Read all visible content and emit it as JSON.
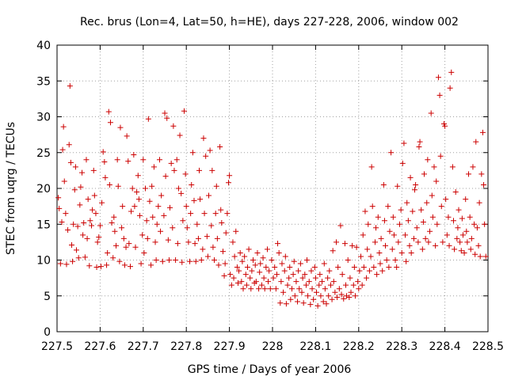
{
  "chart_data": {
    "type": "scatter",
    "title": "Rec. brus (Lon=4, Lat=50, h=HE), days 227-228, 2006, window 002",
    "xlabel": "GPS time / Days of year 2006",
    "ylabel": "STEC from uqrg / TECUs",
    "xlim": [
      227.5,
      228.5
    ],
    "ylim": [
      0,
      40
    ],
    "x_ticks": [
      "227.5",
      "227.6",
      "227.7",
      "227.8",
      "227.9",
      "228",
      "228.1",
      "228.2",
      "228.3",
      "228.4",
      "228.5"
    ],
    "y_ticks": [
      "0",
      "5",
      "10",
      "15",
      "20",
      "25",
      "30",
      "35",
      "40"
    ],
    "grid": true,
    "marker_color": "#cc0000",
    "points": [
      [
        227.503,
        18.7
      ],
      [
        227.505,
        17.2
      ],
      [
        227.508,
        9.5
      ],
      [
        227.511,
        15.3
      ],
      [
        227.513,
        25.4
      ],
      [
        227.515,
        28.6
      ],
      [
        227.517,
        21.0
      ],
      [
        227.52,
        16.5
      ],
      [
        227.522,
        9.4
      ],
      [
        227.525,
        14.2
      ],
      [
        227.528,
        26.1
      ],
      [
        227.53,
        34.3
      ],
      [
        227.532,
        23.6
      ],
      [
        227.534,
        12.1
      ],
      [
        227.536,
        9.8
      ],
      [
        227.538,
        15.0
      ],
      [
        227.541,
        19.8
      ],
      [
        227.543,
        23.0
      ],
      [
        227.545,
        11.4
      ],
      [
        227.548,
        14.7
      ],
      [
        227.55,
        10.3
      ],
      [
        227.553,
        17.7
      ],
      [
        227.555,
        20.2
      ],
      [
        227.558,
        22.2
      ],
      [
        227.56,
        13.5
      ],
      [
        227.562,
        15.2
      ],
      [
        227.565,
        10.4
      ],
      [
        227.568,
        24.0
      ],
      [
        227.57,
        13.0
      ],
      [
        227.572,
        18.5
      ],
      [
        227.575,
        9.2
      ],
      [
        227.577,
        15.5
      ],
      [
        227.58,
        14.8
      ],
      [
        227.582,
        17.0
      ],
      [
        227.585,
        22.5
      ],
      [
        227.587,
        19.0
      ],
      [
        227.59,
        16.5
      ],
      [
        227.592,
        9.0
      ],
      [
        227.594,
        12.5
      ],
      [
        227.597,
        13.2
      ],
      [
        227.6,
        14.8
      ],
      [
        227.602,
        9.1
      ],
      [
        227.604,
        18.0
      ],
      [
        227.607,
        25.1
      ],
      [
        227.61,
        23.7
      ],
      [
        227.612,
        21.5
      ],
      [
        227.615,
        9.3
      ],
      [
        227.617,
        11.0
      ],
      [
        227.62,
        30.7
      ],
      [
        227.622,
        20.5
      ],
      [
        227.624,
        29.2
      ],
      [
        227.627,
        15.2
      ],
      [
        227.63,
        10.3
      ],
      [
        227.632,
        16.0
      ],
      [
        227.634,
        14.0
      ],
      [
        227.637,
        12.0
      ],
      [
        227.64,
        24.0
      ],
      [
        227.642,
        20.3
      ],
      [
        227.645,
        9.8
      ],
      [
        227.647,
        28.5
      ],
      [
        227.65,
        14.5
      ],
      [
        227.652,
        17.5
      ],
      [
        227.655,
        13.0
      ],
      [
        227.657,
        9.3
      ],
      [
        227.66,
        11.8
      ],
      [
        227.662,
        27.3
      ],
      [
        227.665,
        23.8
      ],
      [
        227.667,
        12.3
      ],
      [
        227.67,
        9.1
      ],
      [
        227.672,
        16.8
      ],
      [
        227.675,
        20.0
      ],
      [
        227.678,
        24.7
      ],
      [
        227.68,
        17.5
      ],
      [
        227.682,
        11.8
      ],
      [
        227.685,
        19.5
      ],
      [
        227.688,
        21.8
      ],
      [
        227.69,
        18.5
      ],
      [
        227.692,
        16.2
      ],
      [
        227.695,
        9.5
      ],
      [
        227.698,
        13.5
      ],
      [
        227.7,
        24.0
      ],
      [
        227.702,
        11.0
      ],
      [
        227.705,
        20.0
      ],
      [
        227.708,
        15.5
      ],
      [
        227.71,
        13.0
      ],
      [
        227.712,
        29.7
      ],
      [
        227.715,
        18.2
      ],
      [
        227.718,
        9.3
      ],
      [
        227.72,
        20.3
      ],
      [
        227.722,
        16.0
      ],
      [
        227.725,
        23.0
      ],
      [
        227.728,
        12.5
      ],
      [
        227.73,
        10.0
      ],
      [
        227.732,
        15.0
      ],
      [
        227.735,
        17.5
      ],
      [
        227.738,
        24.0
      ],
      [
        227.74,
        14.0
      ],
      [
        227.742,
        19.0
      ],
      [
        227.745,
        9.8
      ],
      [
        227.748,
        16.2
      ],
      [
        227.75,
        30.5
      ],
      [
        227.752,
        21.7
      ],
      [
        227.755,
        29.8
      ],
      [
        227.758,
        12.8
      ],
      [
        227.76,
        10.0
      ],
      [
        227.762,
        17.3
      ],
      [
        227.765,
        23.5
      ],
      [
        227.768,
        14.5
      ],
      [
        227.77,
        28.7
      ],
      [
        227.772,
        22.5
      ],
      [
        227.775,
        10.0
      ],
      [
        227.778,
        24.0
      ],
      [
        227.78,
        12.3
      ],
      [
        227.782,
        20.0
      ],
      [
        227.785,
        27.4
      ],
      [
        227.788,
        19.3
      ],
      [
        227.79,
        9.7
      ],
      [
        227.792,
        15.5
      ],
      [
        227.795,
        30.8
      ],
      [
        227.798,
        22.0
      ],
      [
        227.8,
        17.5
      ],
      [
        227.802,
        14.5
      ],
      [
        227.805,
        12.5
      ],
      [
        227.808,
        9.8
      ],
      [
        227.81,
        16.5
      ],
      [
        227.812,
        20.5
      ],
      [
        227.815,
        25.0
      ],
      [
        227.818,
        18.3
      ],
      [
        227.82,
        12.3
      ],
      [
        227.822,
        9.8
      ],
      [
        227.825,
        15.0
      ],
      [
        227.828,
        13.0
      ],
      [
        227.83,
        22.5
      ],
      [
        227.832,
        18.5
      ],
      [
        227.835,
        10.0
      ],
      [
        227.838,
        11.5
      ],
      [
        227.84,
        27.0
      ],
      [
        227.842,
        16.5
      ],
      [
        227.845,
        24.5
      ],
      [
        227.848,
        13.3
      ],
      [
        227.85,
        10.5
      ],
      [
        227.852,
        19.0
      ],
      [
        227.855,
        25.3
      ],
      [
        227.858,
        14.8
      ],
      [
        227.86,
        22.5
      ],
      [
        227.862,
        11.8
      ],
      [
        227.865,
        10.0
      ],
      [
        227.868,
        16.5
      ],
      [
        227.87,
        20.3
      ],
      [
        227.872,
        13.0
      ],
      [
        227.875,
        9.3
      ],
      [
        227.878,
        25.8
      ],
      [
        227.88,
        17.0
      ],
      [
        227.882,
        15.2
      ],
      [
        227.885,
        11.2
      ],
      [
        227.888,
        7.8
      ],
      [
        227.89,
        9.5
      ],
      [
        227.892,
        13.8
      ],
      [
        227.895,
        16.5
      ],
      [
        227.898,
        20.8
      ],
      [
        227.9,
        21.8
      ],
      [
        227.902,
        8.0
      ],
      [
        227.905,
        6.5
      ],
      [
        227.908,
        12.5
      ],
      [
        227.91,
        7.5
      ],
      [
        227.912,
        10.5
      ],
      [
        227.915,
        14.0
      ],
      [
        227.918,
        9.0
      ],
      [
        227.92,
        6.8
      ],
      [
        227.922,
        8.5
      ],
      [
        227.925,
        11.0
      ],
      [
        227.928,
        7.0
      ],
      [
        227.93,
        9.8
      ],
      [
        227.932,
        6.0
      ],
      [
        227.935,
        10.5
      ],
      [
        227.938,
        8.0
      ],
      [
        227.94,
        6.5
      ],
      [
        227.942,
        9.0
      ],
      [
        227.945,
        11.5
      ],
      [
        227.948,
        7.5
      ],
      [
        227.95,
        6.0
      ],
      [
        227.952,
        8.5
      ],
      [
        227.955,
        10.0
      ],
      [
        227.958,
        6.8
      ],
      [
        227.96,
        9.3
      ],
      [
        227.962,
        7.0
      ],
      [
        227.965,
        11.0
      ],
      [
        227.968,
        6.0
      ],
      [
        227.97,
        8.3
      ],
      [
        227.972,
        9.5
      ],
      [
        227.975,
        6.5
      ],
      [
        227.978,
        10.3
      ],
      [
        227.98,
        7.5
      ],
      [
        227.982,
        6.0
      ],
      [
        227.985,
        9.0
      ],
      [
        227.988,
        11.5
      ],
      [
        227.99,
        7.0
      ],
      [
        227.992,
        8.5
      ],
      [
        227.995,
        6.0
      ],
      [
        227.998,
        10.0
      ],
      [
        228.002,
        7.5
      ],
      [
        228.005,
        9.0
      ],
      [
        228.008,
        6.0
      ],
      [
        228.01,
        8.0
      ],
      [
        228.012,
        12.3
      ],
      [
        228.015,
        11.0
      ],
      [
        228.018,
        4.0
      ],
      [
        228.02,
        7.0
      ],
      [
        228.022,
        9.5
      ],
      [
        228.025,
        5.5
      ],
      [
        228.028,
        8.5
      ],
      [
        228.03,
        10.5
      ],
      [
        228.032,
        3.9
      ],
      [
        228.035,
        6.5
      ],
      [
        228.038,
        7.5
      ],
      [
        228.04,
        9.0
      ],
      [
        228.042,
        4.5
      ],
      [
        228.045,
        6.0
      ],
      [
        228.048,
        8.0
      ],
      [
        228.05,
        9.8
      ],
      [
        228.052,
        5.0
      ],
      [
        228.055,
        7.0
      ],
      [
        228.058,
        4.2
      ],
      [
        228.06,
        8.5
      ],
      [
        228.062,
        6.0
      ],
      [
        228.065,
        9.5
      ],
      [
        228.068,
        5.5
      ],
      [
        228.07,
        7.5
      ],
      [
        228.072,
        4.0
      ],
      [
        228.075,
        8.0
      ],
      [
        228.078,
        6.5
      ],
      [
        228.08,
        10.0
      ],
      [
        228.082,
        5.0
      ],
      [
        228.085,
        7.0
      ],
      [
        228.088,
        3.8
      ],
      [
        228.09,
        8.5
      ],
      [
        228.092,
        6.0
      ],
      [
        228.095,
        4.5
      ],
      [
        228.098,
        9.0
      ],
      [
        228.1,
        7.5
      ],
      [
        228.102,
        5.5
      ],
      [
        228.105,
        3.6
      ],
      [
        228.108,
        6.5
      ],
      [
        228.11,
        8.0
      ],
      [
        228.112,
        5.0
      ],
      [
        228.115,
        7.0
      ],
      [
        228.118,
        4.2
      ],
      [
        228.12,
        9.5
      ],
      [
        228.122,
        6.0
      ],
      [
        228.125,
        3.9
      ],
      [
        228.128,
        7.5
      ],
      [
        228.13,
        5.0
      ],
      [
        228.132,
        8.5
      ],
      [
        228.135,
        6.5
      ],
      [
        228.138,
        4.5
      ],
      [
        228.14,
        11.3
      ],
      [
        228.142,
        7.0
      ],
      [
        228.145,
        5.5
      ],
      [
        228.148,
        12.5
      ],
      [
        228.15,
        4.8
      ],
      [
        228.152,
        9.0
      ],
      [
        228.155,
        6.0
      ],
      [
        228.158,
        14.8
      ],
      [
        228.16,
        5.2
      ],
      [
        228.162,
        8.0
      ],
      [
        228.165,
        4.6
      ],
      [
        228.168,
        12.3
      ],
      [
        228.17,
        6.5
      ],
      [
        228.172,
        5.0
      ],
      [
        228.175,
        10.0
      ],
      [
        228.178,
        4.8
      ],
      [
        228.18,
        7.5
      ],
      [
        228.182,
        5.5
      ],
      [
        228.185,
        12.0
      ],
      [
        228.188,
        6.5
      ],
      [
        228.19,
        9.0
      ],
      [
        228.192,
        5.0
      ],
      [
        228.195,
        11.8
      ],
      [
        228.198,
        7.0
      ],
      [
        228.2,
        6.0
      ],
      [
        228.202,
        8.5
      ],
      [
        228.205,
        10.5
      ],
      [
        228.208,
        6.5
      ],
      [
        228.21,
        13.5
      ],
      [
        228.212,
        9.0
      ],
      [
        228.215,
        16.8
      ],
      [
        228.218,
        7.5
      ],
      [
        228.22,
        11.5
      ],
      [
        228.222,
        15.0
      ],
      [
        228.225,
        8.5
      ],
      [
        228.228,
        10.5
      ],
      [
        228.23,
        23.0
      ],
      [
        228.232,
        17.5
      ],
      [
        228.235,
        9.0
      ],
      [
        228.238,
        12.5
      ],
      [
        228.24,
        14.5
      ],
      [
        228.242,
        8.0
      ],
      [
        228.245,
        16.0
      ],
      [
        228.248,
        11.0
      ],
      [
        228.25,
        9.5
      ],
      [
        228.252,
        13.0
      ],
      [
        228.255,
        8.5
      ],
      [
        228.258,
        20.5
      ],
      [
        228.26,
        15.5
      ],
      [
        228.262,
        12.0
      ],
      [
        228.265,
        10.0
      ],
      [
        228.268,
        17.5
      ],
      [
        228.27,
        9.0
      ],
      [
        228.272,
        14.0
      ],
      [
        228.275,
        25.0
      ],
      [
        228.278,
        11.5
      ],
      [
        228.28,
        16.0
      ],
      [
        228.282,
        13.5
      ],
      [
        228.285,
        10.0
      ],
      [
        228.288,
        9.0
      ],
      [
        228.29,
        20.3
      ],
      [
        228.292,
        12.5
      ],
      [
        228.295,
        15.0
      ],
      [
        228.298,
        17.0
      ],
      [
        228.3,
        11.0
      ],
      [
        228.302,
        23.5
      ],
      [
        228.305,
        26.3
      ],
      [
        228.308,
        13.5
      ],
      [
        228.31,
        9.8
      ],
      [
        228.312,
        18.0
      ],
      [
        228.315,
        15.5
      ],
      [
        228.318,
        12.0
      ],
      [
        228.32,
        21.5
      ],
      [
        228.322,
        11.0
      ],
      [
        228.325,
        16.8
      ],
      [
        228.328,
        13.0
      ],
      [
        228.33,
        19.8
      ],
      [
        228.332,
        20.5
      ],
      [
        228.335,
        14.5
      ],
      [
        228.338,
        12.5
      ],
      [
        228.34,
        25.8
      ],
      [
        228.342,
        26.5
      ],
      [
        228.345,
        17.0
      ],
      [
        228.348,
        11.5
      ],
      [
        228.35,
        15.3
      ],
      [
        228.352,
        22.0
      ],
      [
        228.355,
        13.0
      ],
      [
        228.358,
        18.0
      ],
      [
        228.36,
        24.0
      ],
      [
        228.362,
        12.5
      ],
      [
        228.365,
        14.0
      ],
      [
        228.368,
        30.5
      ],
      [
        228.37,
        19.0
      ],
      [
        228.372,
        16.0
      ],
      [
        228.375,
        23.0
      ],
      [
        228.378,
        12.0
      ],
      [
        228.38,
        21.0
      ],
      [
        228.382,
        15.0
      ],
      [
        228.385,
        35.5
      ],
      [
        228.388,
        33.0
      ],
      [
        228.39,
        24.5
      ],
      [
        228.392,
        17.5
      ],
      [
        228.395,
        12.5
      ],
      [
        228.398,
        29.0
      ],
      [
        228.4,
        28.7
      ],
      [
        228.402,
        18.5
      ],
      [
        228.405,
        13.5
      ],
      [
        228.408,
        16.0
      ],
      [
        228.41,
        12.0
      ],
      [
        228.412,
        34.0
      ],
      [
        228.415,
        36.2
      ],
      [
        228.418,
        23.0
      ],
      [
        228.42,
        15.5
      ],
      [
        228.422,
        11.5
      ],
      [
        228.425,
        19.5
      ],
      [
        228.428,
        13.0
      ],
      [
        228.43,
        14.5
      ],
      [
        228.432,
        17.0
      ],
      [
        228.435,
        12.5
      ],
      [
        228.438,
        11.3
      ],
      [
        228.44,
        15.8
      ],
      [
        228.442,
        13.5
      ],
      [
        228.445,
        11.0
      ],
      [
        228.448,
        18.5
      ],
      [
        228.45,
        14.0
      ],
      [
        228.452,
        12.5
      ],
      [
        228.455,
        22.0
      ],
      [
        228.458,
        16.0
      ],
      [
        228.46,
        11.5
      ],
      [
        228.462,
        13.0
      ],
      [
        228.465,
        23.0
      ],
      [
        228.468,
        15.0
      ],
      [
        228.47,
        10.8
      ],
      [
        228.472,
        26.5
      ],
      [
        228.475,
        14.5
      ],
      [
        228.478,
        12.0
      ],
      [
        228.48,
        18.0
      ],
      [
        228.482,
        10.5
      ],
      [
        228.485,
        22.0
      ],
      [
        228.488,
        27.8
      ],
      [
        228.49,
        20.5
      ],
      [
        228.492,
        15.0
      ],
      [
        228.495,
        10.5
      ]
    ]
  }
}
